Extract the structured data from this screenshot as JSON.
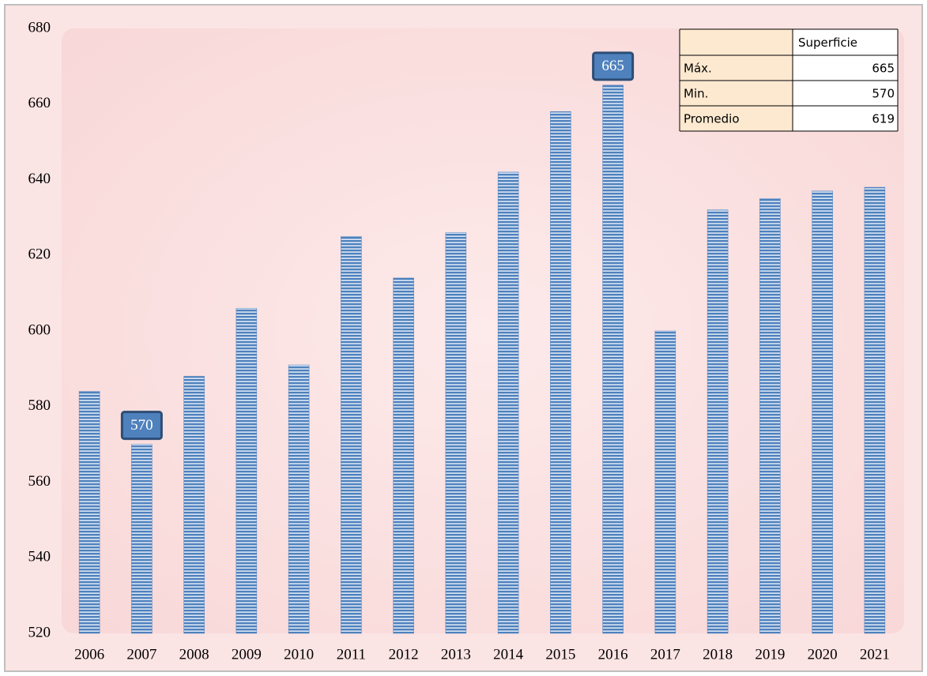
{
  "chart_data": {
    "type": "bar",
    "categories": [
      "2006",
      "2007",
      "2008",
      "2009",
      "2010",
      "2011",
      "2012",
      "2013",
      "2014",
      "2015",
      "2016",
      "2017",
      "2018",
      "2019",
      "2020",
      "2021"
    ],
    "values": [
      584,
      570,
      588,
      606,
      591,
      625,
      614,
      626,
      642,
      658,
      665,
      600,
      632,
      635,
      637,
      638
    ],
    "value_labels": [
      null,
      "570",
      null,
      null,
      null,
      null,
      null,
      null,
      null,
      null,
      "665",
      null,
      null,
      null,
      null,
      null
    ],
    "color": "#4f81bd",
    "ylim": [
      520,
      680
    ],
    "yticks": [
      520,
      540,
      560,
      580,
      600,
      620,
      640,
      660,
      680
    ],
    "grid": false,
    "table": {
      "column": "Superficie",
      "rows": [
        [
          "Máx.",
          "665"
        ],
        [
          "Min.",
          "570"
        ],
        [
          "Promedio",
          "619"
        ]
      ]
    }
  }
}
